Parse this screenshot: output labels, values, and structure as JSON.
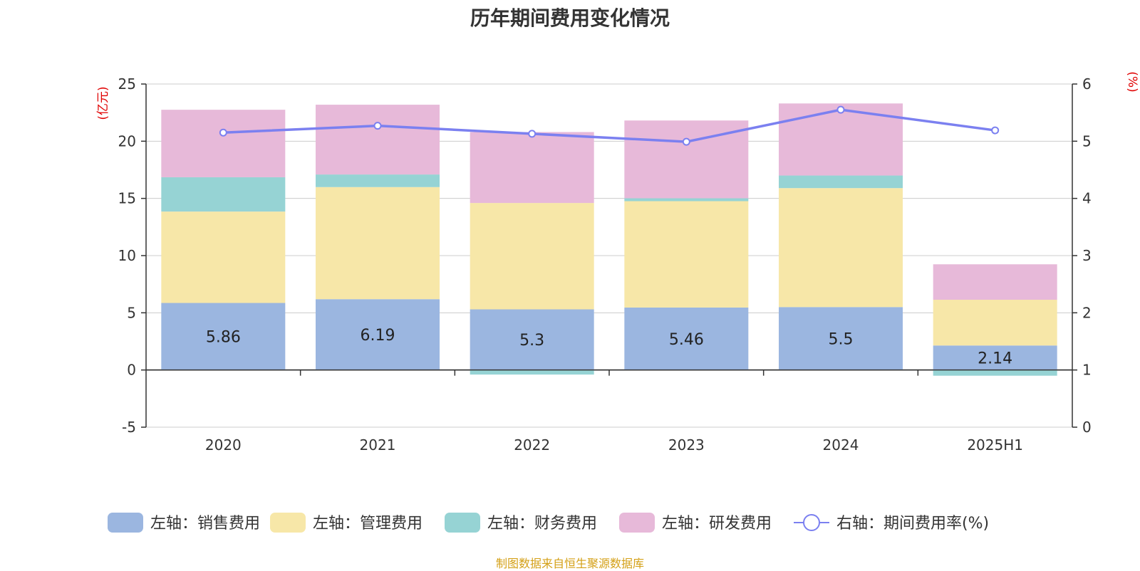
{
  "title": "历年期间费用变化情况",
  "source": "制图数据来自恒生聚源数据库",
  "chart_data": {
    "type": "bar",
    "stacked": true,
    "categories": [
      "2020",
      "2021",
      "2022",
      "2023",
      "2024",
      "2025H1"
    ],
    "y_left": {
      "unit": "(亿元)",
      "lim": [
        -5,
        25
      ],
      "ticks": [
        -5,
        0,
        5,
        10,
        15,
        20,
        25
      ]
    },
    "y_right": {
      "unit": "(%)",
      "lim": [
        0,
        6
      ],
      "ticks": [
        0,
        1,
        2,
        3,
        4,
        5,
        6
      ]
    },
    "series": [
      {
        "name": "左轴：销售费用",
        "type": "bar",
        "axis": "left",
        "color": "#9bb6e0",
        "values": [
          5.86,
          6.19,
          5.3,
          5.46,
          5.5,
          2.14
        ],
        "show_labels": true
      },
      {
        "name": "左轴：管理费用",
        "type": "bar",
        "axis": "left",
        "color": "#f7e7a8",
        "values": [
          7.99,
          9.8,
          9.3,
          9.3,
          10.4,
          4.0
        ]
      },
      {
        "name": "左轴：财务费用",
        "type": "bar",
        "axis": "left",
        "color": "#96d3d4",
        "values": [
          3.0,
          1.1,
          -0.4,
          0.25,
          1.1,
          -0.5
        ]
      },
      {
        "name": "左轴：研发费用",
        "type": "bar",
        "axis": "left",
        "color": "#e7b9d9",
        "values": [
          5.9,
          6.1,
          6.2,
          6.8,
          6.3,
          3.1
        ]
      },
      {
        "name": "右轴：期间费用率(%)",
        "type": "line",
        "axis": "right",
        "color": "#7b80f0",
        "values": [
          5.15,
          5.27,
          5.13,
          4.99,
          5.55,
          5.19
        ]
      }
    ],
    "grid": true,
    "legend_position": "bottom"
  }
}
